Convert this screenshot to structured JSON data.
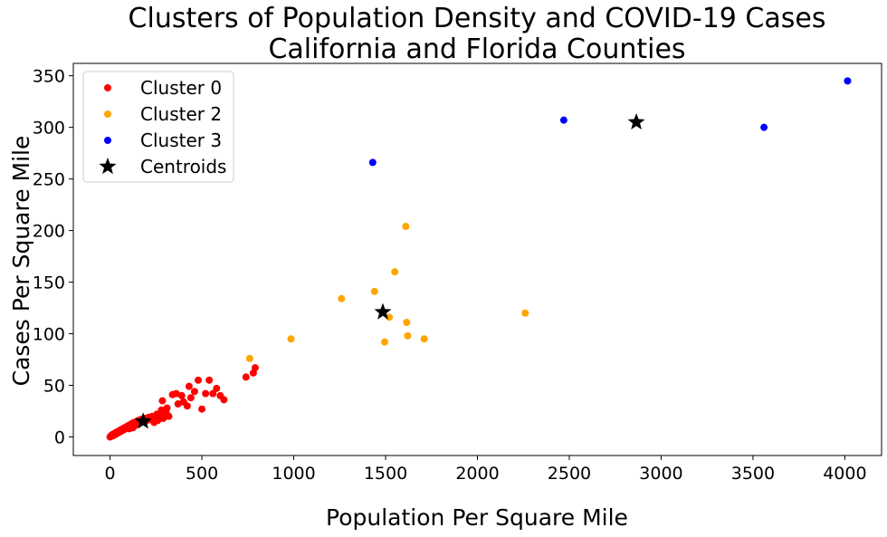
{
  "chart_data": {
    "type": "scatter",
    "title": "Clusters of Population Density and COVID-19 Cases",
    "subtitle": "California and Florida Counties",
    "xlabel": "Population Per Square Mile",
    "ylabel": "Cases Per Square Mile",
    "xlim": [
      -200,
      4200
    ],
    "ylim": [
      -18,
      362
    ],
    "x_ticks": [
      0,
      500,
      1000,
      1500,
      2000,
      2500,
      3000,
      3500,
      4000
    ],
    "y_ticks": [
      0,
      50,
      100,
      150,
      200,
      250,
      300,
      350
    ],
    "grid": false,
    "legend_position": "top-left",
    "series": [
      {
        "name": "Cluster 0",
        "color": "#ff0000",
        "marker": "circle",
        "points": [
          [
            0,
            0
          ],
          [
            5,
            1
          ],
          [
            10,
            2
          ],
          [
            15,
            1
          ],
          [
            20,
            3
          ],
          [
            25,
            2
          ],
          [
            30,
            4
          ],
          [
            35,
            3
          ],
          [
            40,
            5
          ],
          [
            45,
            4
          ],
          [
            50,
            6
          ],
          [
            55,
            5
          ],
          [
            60,
            7
          ],
          [
            65,
            6
          ],
          [
            70,
            8
          ],
          [
            75,
            7
          ],
          [
            80,
            9
          ],
          [
            85,
            8
          ],
          [
            90,
            10
          ],
          [
            95,
            9
          ],
          [
            100,
            11
          ],
          [
            105,
            8
          ],
          [
            110,
            12
          ],
          [
            115,
            10
          ],
          [
            120,
            13
          ],
          [
            125,
            9
          ],
          [
            130,
            14
          ],
          [
            135,
            11
          ],
          [
            140,
            12
          ],
          [
            145,
            15
          ],
          [
            150,
            13
          ],
          [
            155,
            16
          ],
          [
            160,
            14
          ],
          [
            170,
            17
          ],
          [
            180,
            15
          ],
          [
            190,
            18
          ],
          [
            200,
            16
          ],
          [
            210,
            19
          ],
          [
            220,
            17
          ],
          [
            230,
            20
          ],
          [
            240,
            14
          ],
          [
            250,
            18
          ],
          [
            255,
            22
          ],
          [
            260,
            16
          ],
          [
            270,
            20
          ],
          [
            280,
            26
          ],
          [
            285,
            35
          ],
          [
            290,
            18
          ],
          [
            300,
            22
          ],
          [
            305,
            24
          ],
          [
            310,
            28
          ],
          [
            320,
            20
          ],
          [
            340,
            41
          ],
          [
            360,
            42
          ],
          [
            370,
            32
          ],
          [
            390,
            40
          ],
          [
            400,
            34
          ],
          [
            420,
            30
          ],
          [
            430,
            49
          ],
          [
            440,
            38
          ],
          [
            460,
            44
          ],
          [
            480,
            55
          ],
          [
            500,
            27
          ],
          [
            520,
            42
          ],
          [
            540,
            55
          ],
          [
            560,
            42
          ],
          [
            580,
            47
          ],
          [
            600,
            40
          ],
          [
            620,
            36
          ],
          [
            740,
            58
          ],
          [
            780,
            62
          ],
          [
            790,
            67
          ]
        ]
      },
      {
        "name": "Cluster 2",
        "color": "#ffa500",
        "marker": "circle",
        "points": [
          [
            760,
            76
          ],
          [
            985,
            95
          ],
          [
            1260,
            134
          ],
          [
            1440,
            141
          ],
          [
            1495,
            92
          ],
          [
            1520,
            116
          ],
          [
            1550,
            160
          ],
          [
            1610,
            204
          ],
          [
            1615,
            111
          ],
          [
            1620,
            98
          ],
          [
            1710,
            95
          ],
          [
            2260,
            120
          ]
        ]
      },
      {
        "name": "Cluster 3",
        "color": "#0000ff",
        "marker": "circle",
        "points": [
          [
            1430,
            266
          ],
          [
            2470,
            307
          ],
          [
            3560,
            300
          ],
          [
            4015,
            345
          ]
        ]
      },
      {
        "name": "Centroids",
        "color": "#000000",
        "marker": "star",
        "points": [
          [
            180,
            15
          ],
          [
            1485,
            121
          ],
          [
            2865,
            305
          ]
        ]
      }
    ]
  }
}
